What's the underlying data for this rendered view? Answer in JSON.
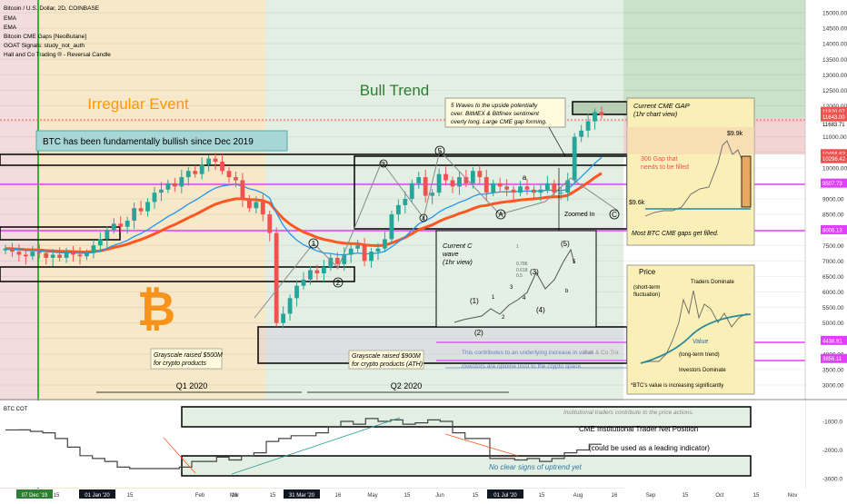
{
  "header": {
    "title": "Bitcoin / U.S. Dollar, 2D, COINBASE",
    "indicators": [
      "EMA",
      "EMA",
      "Bitcoin CME Gaps [NeoButane]",
      "GOAT Signals: study_not_auth",
      "Hall and Co Trading ® - Reversal Candle"
    ]
  },
  "zone_labels": {
    "irregular_event": "Irregular Event",
    "bull_trend": "Bull Trend"
  },
  "annotations": {
    "fundamentally_bullish": "BTC has been fundamentally bullish since Dec 2019",
    "five_waves": [
      "5 Waves to the upside potentially",
      "over. BitMEX & Bitfinex sentiment",
      "overly long. Large CME gap forming."
    ],
    "cme_gap_title": "Current CME GAP",
    "cme_gap_sub": "(1hr chart view)",
    "gap_300_1": "300 Gap that",
    "gap_300_2": "needs to be filled",
    "price_9_9k": "$9.9k",
    "price_9_6k": "$9.6k",
    "most_gaps": "Most BTC CME gaps get filled.",
    "zoomed_in": "Zoomed In",
    "current_c_wave": [
      "Current C",
      "wave",
      "(1hr view)"
    ],
    "grayscale_500m": [
      "Grayscale raised $500M",
      "for crypto products"
    ],
    "grayscale_900m": [
      "Grayscale raised $900M",
      "for crypto products (ATH)"
    ],
    "q1": "Q1 2020",
    "q2": "Q2 2020",
    "underlying_increase": [
      "This contributes to an underlying increase in value",
      "investors are opinine trust to the crypto space."
    ],
    "price_title": "Price",
    "short_term": [
      "(short-term",
      "fluctuation)"
    ],
    "traders_dominate": "Traders Dominate",
    "value_label": "Value",
    "long_term": "(long-term trend)",
    "investors_dominate": "Investors Dominate",
    "btc_value_increasing": "*BTC's value is increasing significantly",
    "institutional_contribute": "Institutional traders contribute to the price actions.",
    "cme_net_position": "CME Institutional Trader Net Position",
    "leading_indicator": "(could be used as a leading indicator)",
    "no_clear_signs": "No clear signs of uptrend yet",
    "btc_cot": "BTC COT",
    "watermark": "Hall & Co Tra",
    "elliott_labels": [
      "5",
      "3",
      "4",
      "1",
      "2",
      "A",
      "B",
      "C",
      "3"
    ],
    "mini_wave_labels": [
      "(1)",
      "(2)",
      "(3)",
      "(4)",
      "(5)",
      "1",
      "2",
      "3",
      "4",
      "5",
      "a",
      "b"
    ],
    "fib_labels": [
      "1",
      "0.786",
      "0.618",
      "0.5"
    ]
  },
  "colors": {
    "bull": "#26a69a",
    "bear": "#ef5350",
    "ema_fast": "#ff5722",
    "ema_slow": "#2196f3",
    "magenta": "#e040fb",
    "irregular_zone": "#f6e8c8",
    "bull_zone": "#e4efe4",
    "cme_box": "#fbefb8",
    "orange_text": "#ff9800",
    "green_text": "#2e7d32"
  },
  "icons": [
    "bitcoin-logo-icon",
    "cme-gap-rect"
  ],
  "chart_data": [
    {
      "type": "candlestick",
      "title": "Bitcoin / U.S. Dollar, 2D, COINBASE",
      "y_axis_ticks": [
        15000,
        14500,
        14000,
        13500,
        13000,
        12500,
        12000,
        11500,
        11000,
        10500,
        10000,
        9500,
        9000,
        8500,
        8000,
        7500,
        7000,
        6500,
        6000,
        5500,
        5000,
        4500,
        4000,
        3500,
        3000
      ],
      "price_labels": [
        {
          "text": "11820.07",
          "color": "#ef5350"
        },
        {
          "text": "1d 2h",
          "color": "#ef5350"
        },
        {
          "text": "11683.71",
          "color": "#ffffff"
        },
        {
          "text": "11643.00",
          "color": "#ef5350"
        },
        {
          "text": "10456.63",
          "color": "#ef5350"
        },
        {
          "text": "10296.42",
          "color": "#ef5350"
        },
        {
          "text": "9507.73",
          "color": "#e040fb"
        },
        {
          "text": "8006.13",
          "color": "#e040fb"
        },
        {
          "text": "4438.91",
          "color": "#e040fb"
        },
        {
          "text": "3856.11",
          "color": "#e040fb"
        }
      ],
      "x_axis_ticks": [
        "07 Dec '19",
        "15",
        "01 Jan '20",
        "15",
        "Feb",
        "16",
        "Mar",
        "15",
        "31 Mar '20",
        "16",
        "May",
        "15",
        "Jun",
        "15",
        "01 Jul '20",
        "15",
        "Aug",
        "16",
        "Sep",
        "15",
        "Oct",
        "15",
        "Nov"
      ],
      "highlighted_x_ticks": [
        "07 Dec '19",
        "01 Jan '20",
        "31 Mar '20",
        "01 Jul '20"
      ],
      "approx_closes": [
        7400,
        7300,
        7200,
        7150,
        7300,
        7250,
        7100,
        7200,
        7100,
        7300,
        7200,
        7150,
        7250,
        7500,
        7700,
        8000,
        8200,
        8100,
        8300,
        8700,
        8600,
        8900,
        9200,
        9300,
        9500,
        9400,
        9700,
        9900,
        9800,
        10100,
        10300,
        10200,
        9900,
        9700,
        9600,
        9000,
        8700,
        8900,
        8500,
        7900,
        5000,
        5300,
        5800,
        6200,
        6400,
        6700,
        6600,
        6800,
        7100,
        6900,
        7200,
        7400,
        7500,
        7000,
        7300,
        7400,
        7700,
        8500,
        8800,
        9000,
        9500,
        9700,
        9100,
        9200,
        9800,
        9600,
        9400,
        9700,
        9500,
        9900,
        9700,
        9200,
        9500,
        9400,
        9300,
        9200,
        9400,
        9300,
        9200,
        9300,
        9500,
        9200,
        9200,
        9600,
        11000,
        11200,
        11500,
        11800,
        11700
      ],
      "series": [
        {
          "name": "EMA",
          "color": "#ff5722"
        },
        {
          "name": "EMA",
          "color": "#2196f3"
        }
      ]
    },
    {
      "type": "line",
      "title": "BTC COT",
      "y_axis_ticks": [
        -1000,
        -2000,
        -3000
      ],
      "approx_values": [
        -1300,
        -1300,
        -1350,
        -1400,
        -1600,
        -1900,
        -2200,
        -2300,
        -2400,
        -2600,
        -2650,
        -2650,
        -2650,
        -2650,
        -2600,
        -2400,
        -2400,
        -2250,
        -2350,
        -2200,
        -2100,
        -1700,
        -1600,
        -1500,
        -1500,
        -1400,
        -1200,
        -1000,
        -1100,
        -900,
        -1000,
        -950,
        -1100,
        -1050,
        -950,
        -1000,
        -1400,
        -1600,
        -1600,
        -2300,
        -2300,
        -2350,
        -2300,
        -2400,
        -2300,
        -2100,
        -2000,
        -1800,
        -1800
      ]
    }
  ]
}
